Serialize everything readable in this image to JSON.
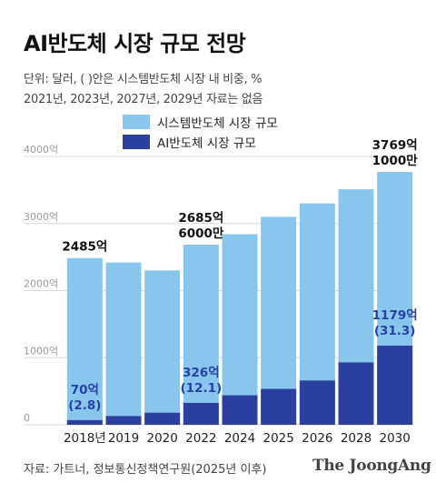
{
  "title": "AI반도체 시장 규모 전망",
  "subtitle_line1": "단위: 달러, ( )안은 시스템반도체 시장 내 비중, %",
  "subtitle_line2": "2021년, 2023년, 2027년, 2029년 자료는 없음",
  "source": "자료: 가트너, 정보통신정책연구원(2025년 이후)",
  "brand": "The JoongAng",
  "colors": {
    "system": "#89c6ee",
    "ai": "#2b3f9e",
    "grid": "#d8d8d8"
  },
  "chart_data": {
    "type": "bar",
    "title": "AI반도체 시장 규모 전망",
    "categories": [
      "2018년",
      "2019",
      "2020",
      "2022",
      "2024",
      "2025",
      "2026",
      "2028",
      "2030"
    ],
    "ylim": [
      0,
      4000
    ],
    "yticks": [
      "0",
      "1000억",
      "2000억",
      "3000억",
      "4000억"
    ],
    "series": [
      {
        "name": "시스템반도체 시장 규모",
        "values": [
          2485,
          2420,
          2300,
          2685,
          2840,
          3100,
          3300,
          3510,
          3769
        ]
      },
      {
        "name": "AI반도체 시장 규모",
        "values": [
          70,
          130,
          180,
          326,
          440,
          535,
          660,
          930,
          1179
        ]
      }
    ],
    "annotations": [
      {
        "index": 0,
        "series": 0,
        "text": [
          "2485억"
        ]
      },
      {
        "index": 3,
        "series": 0,
        "text": [
          "2685억",
          "6000만"
        ]
      },
      {
        "index": 8,
        "series": 0,
        "text": [
          "3769억",
          "1000만"
        ]
      },
      {
        "index": 0,
        "series": 1,
        "text": [
          "70억",
          "(2.8)"
        ]
      },
      {
        "index": 3,
        "series": 1,
        "text": [
          "326억",
          "(12.1)"
        ]
      },
      {
        "index": 8,
        "series": 1,
        "text": [
          "1179억",
          "(31.3)"
        ]
      }
    ],
    "legend_position": "top-left"
  }
}
